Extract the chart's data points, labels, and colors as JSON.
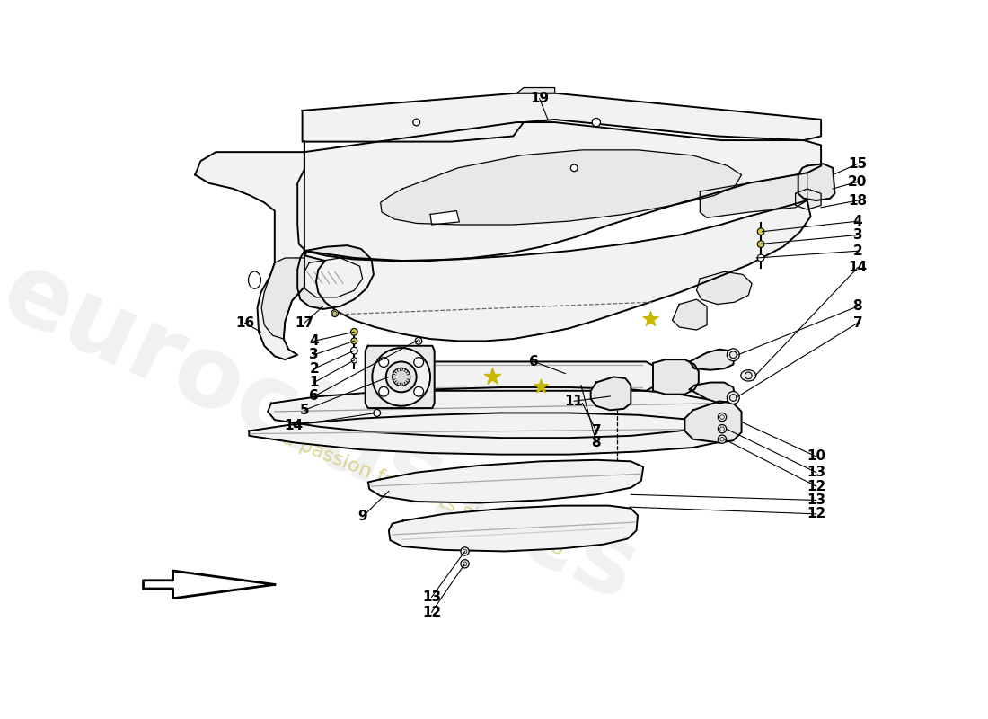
{
  "background_color": "#ffffff",
  "line_color": "#000000",
  "fill_light": "#f2f2f2",
  "fill_medium": "#e8e8e8",
  "fill_dark": "#d8d8d8",
  "watermark_color1": "#d0d0d0",
  "watermark_color2": "#d4c870",
  "lw_main": 1.4,
  "lw_thin": 0.9,
  "lw_thick": 2.0,
  "label_fontsize": 11,
  "leader_lw": 0.8
}
